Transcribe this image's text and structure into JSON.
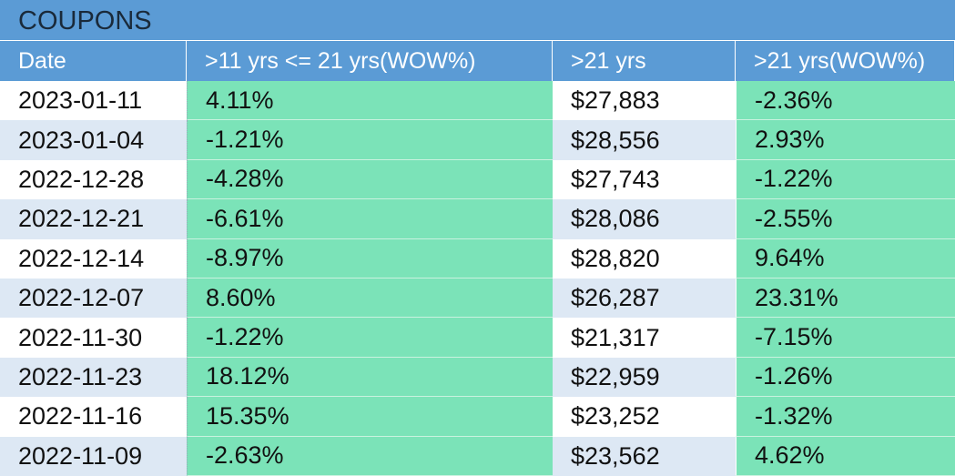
{
  "table": {
    "title": "COUPONS",
    "columns": [
      "Date",
      ">11 yrs <= 21 yrs(WOW%)",
      ">21 yrs",
      ">21 yrs(WOW%)"
    ],
    "rows": [
      [
        "2023-01-11",
        "4.11%",
        "$27,883",
        "-2.36%"
      ],
      [
        "2023-01-04",
        "-1.21%",
        "$28,556",
        "2.93%"
      ],
      [
        "2022-12-28",
        "-4.28%",
        "$27,743",
        "-1.22%"
      ],
      [
        "2022-12-21",
        "-6.61%",
        "$28,086",
        "-2.55%"
      ],
      [
        "2022-12-14",
        "-8.97%",
        "$28,820",
        "9.64%"
      ],
      [
        "2022-12-07",
        "8.60%",
        "$26,287",
        "23.31%"
      ],
      [
        "2022-11-30",
        "-1.22%",
        "$21,317",
        "-7.15%"
      ],
      [
        "2022-11-23",
        "18.12%",
        "$22,959",
        "-1.26%"
      ],
      [
        "2022-11-16",
        "15.35%",
        "$23,252",
        "-1.32%"
      ],
      [
        "2022-11-09",
        "-2.63%",
        "$23,562",
        "4.62%"
      ]
    ]
  }
}
